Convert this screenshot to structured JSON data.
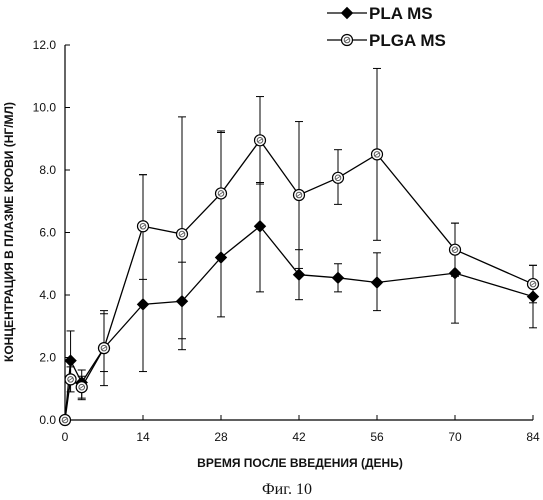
{
  "chart_data": {
    "type": "line",
    "xlabel": "ВРЕМЯ ПОСЛЕ ВВЕДЕНИЯ (ДЕНЬ)",
    "ylabel": "КОНЦЕНТРАЦИЯ В ПЛАЗМЕ КРОВИ (НГ/МЛ)",
    "caption": "Фиг. 10",
    "xlim": [
      0,
      84
    ],
    "ylim": [
      0,
      12
    ],
    "xticks": [
      0,
      14,
      28,
      42,
      56,
      70,
      84
    ],
    "yticks": [
      "0.0",
      "2.0",
      "4.0",
      "6.0",
      "8.0",
      "10.0",
      "12.0"
    ],
    "ytick_values": [
      0,
      2,
      4,
      6,
      8,
      10,
      12
    ],
    "legend_position": "top-right",
    "grid": false,
    "series": [
      {
        "name": "PLA MS",
        "marker": "filled-diamond",
        "color": "#000000",
        "x": [
          0,
          1,
          3,
          7,
          14,
          21,
          28,
          35,
          42,
          49,
          56,
          70,
          84
        ],
        "y": [
          0.0,
          1.9,
          1.2,
          2.3,
          3.7,
          3.8,
          5.2,
          6.2,
          4.65,
          4.55,
          4.4,
          4.7,
          3.95
        ],
        "err_low": [
          0,
          1.2,
          0.65,
          1.1,
          1.55,
          2.6,
          3.3,
          4.1,
          3.85,
          4.1,
          3.5,
          3.1,
          2.95
        ],
        "err_high": [
          0,
          2.85,
          1.6,
          3.4,
          7.85,
          5.05,
          9.25,
          7.6,
          5.45,
          5.0,
          5.35,
          6.3,
          4.95
        ]
      },
      {
        "name": "PLGA MS",
        "marker": "open-circle-hatched",
        "color": "#000000",
        "x": [
          0,
          1,
          3,
          7,
          14,
          21,
          28,
          35,
          42,
          49,
          56,
          70,
          84
        ],
        "y": [
          0.0,
          1.3,
          1.05,
          2.3,
          6.2,
          5.95,
          7.25,
          8.95,
          7.2,
          7.75,
          8.5,
          5.45,
          4.35
        ],
        "err_low": [
          0,
          0.9,
          0.7,
          1.55,
          4.5,
          2.25,
          5.25,
          7.55,
          4.85,
          6.9,
          5.75,
          4.6,
          3.75
        ],
        "err_high": [
          0,
          1.7,
          1.4,
          3.5,
          7.85,
          9.7,
          9.2,
          10.35,
          9.55,
          8.65,
          11.25,
          6.3,
          4.95
        ]
      }
    ]
  }
}
